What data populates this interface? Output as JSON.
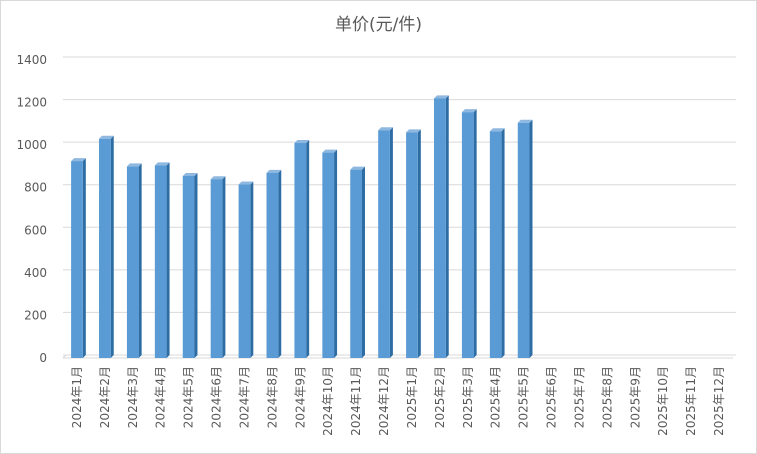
{
  "chart_data": {
    "type": "bar",
    "title": "单价(元/件)",
    "xlabel": "",
    "ylabel": "",
    "ylim": [
      0,
      1400
    ],
    "yticks": [
      0,
      200,
      400,
      600,
      800,
      1000,
      1200,
      1400
    ],
    "grid": true,
    "legend": "none",
    "bar_color": "#5b9bd5",
    "categories": [
      "2024年1月",
      "2024年2月",
      "2024年3月",
      "2024年4月",
      "2024年5月",
      "2024年6月",
      "2024年7月",
      "2024年8月",
      "2024年9月",
      "2024年10月",
      "2024年11月",
      "2024年12月",
      "2025年1月",
      "2025年2月",
      "2025年3月",
      "2025年4月",
      "2025年5月",
      "2025年6月",
      "2025年7月",
      "2025年8月",
      "2025年9月",
      "2025年10月",
      "2025年11月",
      "2025年12月"
    ],
    "values": [
      925,
      1030,
      900,
      905,
      855,
      840,
      815,
      870,
      1010,
      965,
      885,
      1070,
      1060,
      1220,
      1155,
      1065,
      1105,
      null,
      null,
      null,
      null,
      null,
      null,
      null
    ]
  }
}
